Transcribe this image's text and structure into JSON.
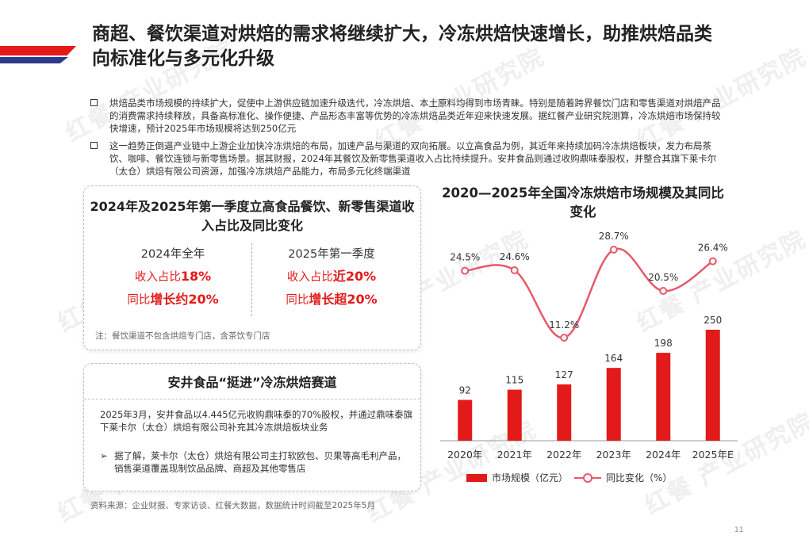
{
  "title": "商超、餐饮渠道对烘焙的需求将继续扩大，冷冻烘焙快速增长，助推烘焙品类向标准化与多元化升级",
  "watermark": "红餐 产业研究院",
  "bullets": [
    "烘焙品类市场规模的持续扩大，促使中上游供应链加速升级迭代，冷冻烘焙、本土原料均得到市场青睐。特别是随着跨界餐饮门店和零售渠道对烘焙产品的消费需求持续释放，具备高标准化、操作便捷、产品形态丰富等优势的冷冻烘焙品类近年迎来快速发展。据红餐产业研究院测算，冷冻烘焙市场保持较快增速，预计2025年市场规模将达到250亿元",
    "这一趋势正倒逼产业链中上游企业加快冷冻烘焙的布局，加速产品与渠道的双向拓展。以立高食品为例，其近年来持续加码冷冻烘焙板块，发力布局茶饮、咖啡、餐饮连锁与新零售场景。据其财报，2024年其餐饮及新零售渠道收入占比持续提升。安井食品则通过收购鼎味泰股权，并整合其旗下莱卡尔（太仓）烘焙有限公司资源，加强冷冻烘焙产品能力，布局多元化终端渠道"
  ],
  "card1": {
    "title": "2024年及2025年第一季度立高食品餐饮、新零售渠道收入占比及同比变化",
    "left": {
      "header": "2024年全年",
      "line1_prefix": "收入占比",
      "line1_value": "18%",
      "line2_prefix": "同比",
      "line2_value": "增长约20%"
    },
    "right": {
      "header": "2025年第一季度",
      "line1_prefix": "收入占比",
      "line1_value": "近20%",
      "line2_prefix": "同比",
      "line2_value": "增长超20%"
    },
    "note": "注：餐饮渠道不包含烘焙专门店，含茶饮专门店"
  },
  "card2": {
    "title": "安井食品“挺进”冷冻烘焙赛道",
    "body": "2025年3月，安井食品以4.445亿元收购鼎味泰的70%股权，并通过鼎味泰旗下莱卡尔（太仓）烘焙有限公司补充其冷冻烘焙板块业务",
    "sub_marker": "➢",
    "sub": "据了解，莱卡尔（太仓）烘焙有限公司主打软欧包、贝果等高毛利产品，销售渠道覆盖现制饮品品牌、商超及其他零售店"
  },
  "source": "资料来源：企业财报、专家访谈、红餐大数据，数据统计时间截至2025年5月",
  "page_number": "11",
  "colors": {
    "accent_red": "#e31a1a",
    "accent_blue": "#2c3a8c",
    "line_pink": "#e55a6a"
  },
  "chart_data": {
    "type": "bar",
    "title": "2020—2025年全国冷冻烘焙市场规模及其同比变化",
    "categories": [
      "2020年",
      "2021年",
      "2022年",
      "2023年",
      "2024年",
      "2025年E"
    ],
    "series": [
      {
        "name": "市场规模（亿元）",
        "type": "bar",
        "values": [
          92,
          115,
          127,
          164,
          198,
          250
        ],
        "labels": [
          "92",
          "115",
          "127",
          "164",
          "198",
          "250"
        ]
      },
      {
        "name": "同比变化（%）",
        "type": "line",
        "values": [
          24.5,
          24.6,
          11.2,
          28.7,
          20.5,
          26.4
        ],
        "labels": [
          "24.5%",
          "24.6%",
          "11.2%",
          "28.7%",
          "20.5%",
          "26.4%"
        ]
      }
    ],
    "legend": "bottom"
  }
}
